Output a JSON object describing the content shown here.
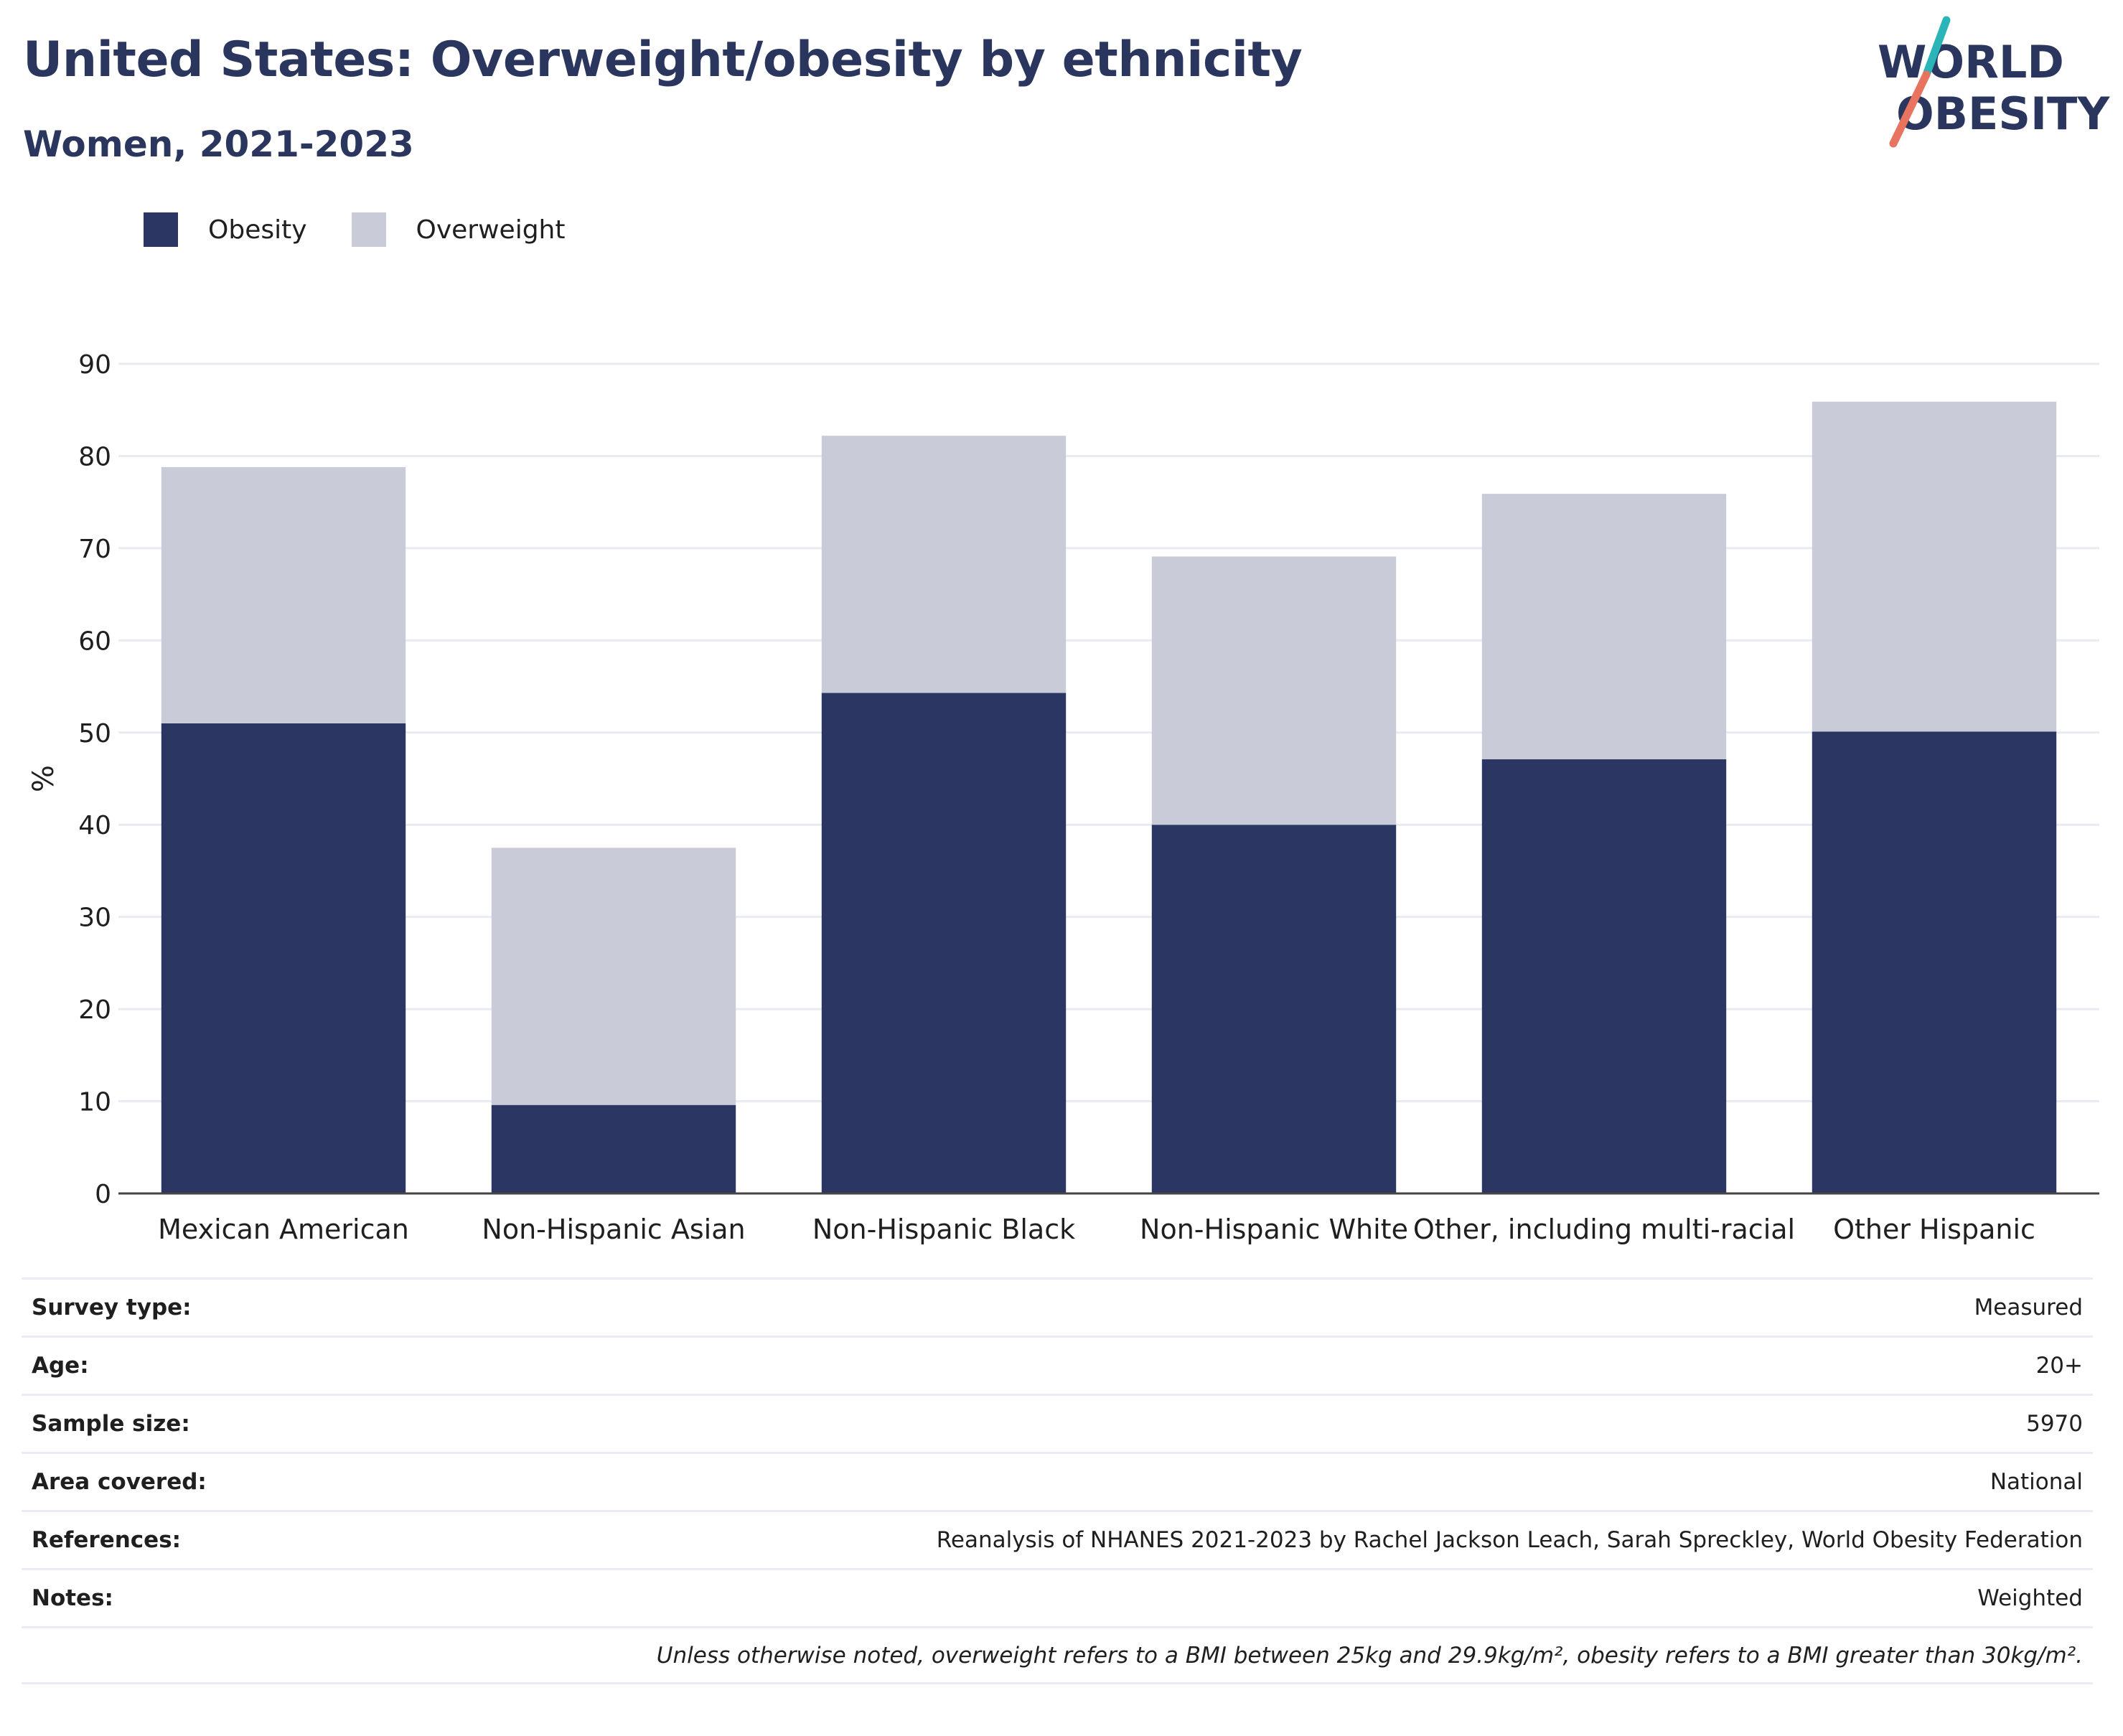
{
  "header": {
    "title": "United States: Overweight/obesity by ethnicity",
    "subtitle": "Women, 2021-2023"
  },
  "logo": {
    "line1": "WORLD",
    "line2": "OBESITY"
  },
  "legend": [
    {
      "label": "Obesity",
      "color": "#2b3663"
    },
    {
      "label": "Overweight",
      "color": "#c9ccd8"
    }
  ],
  "chart_data": {
    "type": "bar",
    "stacked": true,
    "categories": [
      "Mexican American",
      "Non-Hispanic Asian",
      "Non-Hispanic Black",
      "Non-Hispanic White",
      "Other, including multi-racial",
      "Other Hispanic"
    ],
    "series": [
      {
        "name": "Obesity",
        "color": "#2b3663",
        "values": [
          51.0,
          9.6,
          54.3,
          40.0,
          47.1,
          50.1
        ]
      },
      {
        "name": "Overweight",
        "color": "#c9ccd8",
        "values": [
          27.8,
          27.9,
          27.9,
          29.1,
          28.8,
          35.8
        ]
      }
    ],
    "ylabel": "%",
    "ylim": [
      0,
      90
    ],
    "yticks": [
      0,
      10,
      20,
      30,
      40,
      50,
      60,
      70,
      80,
      90
    ],
    "grid": true,
    "legend_position": "top-left"
  },
  "meta": {
    "rows": [
      {
        "key": "Survey type:",
        "value": "Measured"
      },
      {
        "key": "Age:",
        "value": "20+"
      },
      {
        "key": "Sample size:",
        "value": "5970"
      },
      {
        "key": "Area covered:",
        "value": "National"
      },
      {
        "key": "References:",
        "value": "Reanalysis of NHANES 2021-2023 by Rachel Jackson Leach, Sarah Spreckley, World Obesity Federation"
      },
      {
        "key": "Notes:",
        "value": "Weighted"
      }
    ],
    "footnote": "Unless otherwise noted, overweight refers to a BMI between 25kg and 29.9kg/m², obesity refers to a BMI greater than 30kg/m²."
  }
}
